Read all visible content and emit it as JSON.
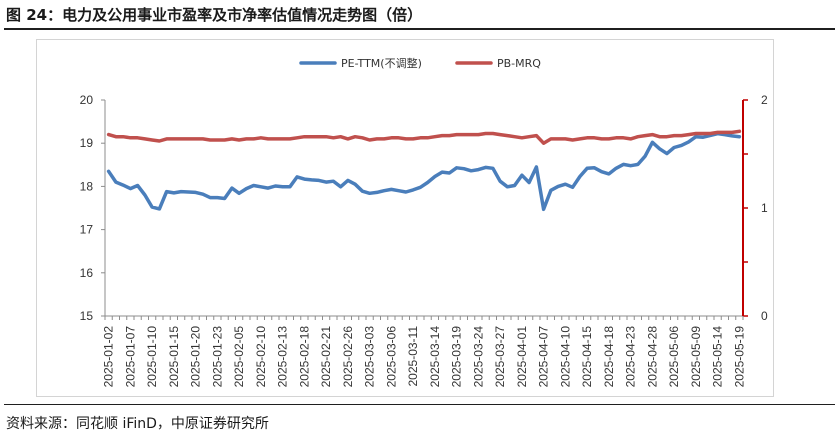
{
  "figure": {
    "title": "图 24：电力及公用事业市盈率及市净率估值情况走势图（倍）",
    "source": "资料来源：同花顺 iFinD，中原证券研究所"
  },
  "chart_data": {
    "type": "line",
    "x": [
      "2025-01-02",
      "2025-01-03",
      "2025-01-06",
      "2025-01-07",
      "2025-01-08",
      "2025-01-09",
      "2025-01-10",
      "2025-01-13",
      "2025-01-14",
      "2025-01-15",
      "2025-01-16",
      "2025-01-17",
      "2025-01-20",
      "2025-01-21",
      "2025-01-22",
      "2025-01-23",
      "2025-01-24",
      "2025-01-27",
      "2025-02-05",
      "2025-02-06",
      "2025-02-07",
      "2025-02-10",
      "2025-02-11",
      "2025-02-12",
      "2025-02-13",
      "2025-02-14",
      "2025-02-17",
      "2025-02-18",
      "2025-02-19",
      "2025-02-20",
      "2025-02-21",
      "2025-02-24",
      "2025-02-25",
      "2025-02-26",
      "2025-02-27",
      "2025-02-28",
      "2025-03-03",
      "2025-03-04",
      "2025-03-05",
      "2025-03-06",
      "2025-03-07",
      "2025-03-10",
      "2025-03-11",
      "2025-03-12",
      "2025-03-13",
      "2025-03-14",
      "2025-03-17",
      "2025-03-18",
      "2025-03-19",
      "2025-03-20",
      "2025-03-21",
      "2025-03-24",
      "2025-03-25",
      "2025-03-26",
      "2025-03-27",
      "2025-03-28",
      "2025-03-31",
      "2025-04-01",
      "2025-04-02",
      "2025-04-03",
      "2025-04-07",
      "2025-04-08",
      "2025-04-09",
      "2025-04-10",
      "2025-04-11",
      "2025-04-14",
      "2025-04-15",
      "2025-04-16",
      "2025-04-17",
      "2025-04-18",
      "2025-04-21",
      "2025-04-22",
      "2025-04-23",
      "2025-04-24",
      "2025-04-25",
      "2025-04-28",
      "2025-04-29",
      "2025-04-30",
      "2025-05-06",
      "2025-05-07",
      "2025-05-08",
      "2025-05-09",
      "2025-05-12",
      "2025-05-13",
      "2025-05-14",
      "2025-05-15",
      "2025-05-16",
      "2025-05-19"
    ],
    "tick_labels": [
      "2025-01-02",
      "2025-01-07",
      "2025-01-10",
      "2025-01-15",
      "2025-01-20",
      "2025-01-23",
      "2025-02-05",
      "2025-02-10",
      "2025-02-13",
      "2025-02-18",
      "2025-02-21",
      "2025-02-26",
      "2025-03-03",
      "2025-03-06",
      "2025-03-11",
      "2025-03-14",
      "2025-03-19",
      "2025-03-24",
      "2025-03-27",
      "2025-04-01",
      "2025-04-07",
      "2025-04-10",
      "2025-04-15",
      "2025-04-18",
      "2025-04-23",
      "2025-04-28",
      "2025-05-06",
      "2025-05-09",
      "2025-05-14",
      "2025-05-19"
    ],
    "series": [
      {
        "name": "PE-TTM(不调整)",
        "axis": "left",
        "color": "#4a7ebb",
        "values": [
          18.35,
          18.1,
          18.03,
          17.95,
          18.02,
          17.8,
          17.52,
          17.48,
          17.88,
          17.85,
          17.88,
          17.87,
          17.86,
          17.82,
          17.74,
          17.74,
          17.72,
          17.96,
          17.84,
          17.95,
          18.02,
          17.99,
          17.96,
          18.01,
          17.99,
          17.99,
          18.22,
          18.17,
          18.15,
          18.14,
          18.1,
          18.12,
          17.99,
          18.14,
          18.05,
          17.89,
          17.84,
          17.86,
          17.9,
          17.93,
          17.9,
          17.87,
          17.92,
          17.98,
          18.09,
          18.23,
          18.33,
          18.31,
          18.43,
          18.41,
          18.36,
          18.39,
          18.44,
          18.42,
          18.12,
          17.99,
          18.02,
          18.26,
          18.09,
          18.45,
          17.47,
          17.91,
          18.0,
          18.05,
          17.98,
          18.23,
          18.42,
          18.43,
          18.34,
          18.29,
          18.42,
          18.51,
          18.48,
          18.51,
          18.7,
          19.02,
          18.87,
          18.76,
          18.9,
          18.95,
          19.03,
          19.15,
          19.14,
          19.18,
          19.22,
          19.2,
          19.17,
          19.15
        ]
      },
      {
        "name": "PB-MRQ",
        "axis": "right",
        "color": "#c0504d",
        "values": [
          1.68,
          1.66,
          1.66,
          1.65,
          1.65,
          1.64,
          1.63,
          1.62,
          1.64,
          1.64,
          1.64,
          1.64,
          1.64,
          1.64,
          1.63,
          1.63,
          1.63,
          1.64,
          1.63,
          1.64,
          1.64,
          1.65,
          1.64,
          1.64,
          1.64,
          1.64,
          1.65,
          1.66,
          1.66,
          1.66,
          1.66,
          1.65,
          1.66,
          1.64,
          1.66,
          1.65,
          1.63,
          1.64,
          1.64,
          1.65,
          1.65,
          1.64,
          1.64,
          1.65,
          1.65,
          1.66,
          1.67,
          1.67,
          1.68,
          1.68,
          1.68,
          1.68,
          1.69,
          1.69,
          1.68,
          1.67,
          1.66,
          1.65,
          1.66,
          1.67,
          1.6,
          1.64,
          1.64,
          1.64,
          1.63,
          1.64,
          1.65,
          1.65,
          1.64,
          1.64,
          1.65,
          1.65,
          1.64,
          1.66,
          1.67,
          1.68,
          1.66,
          1.66,
          1.67,
          1.67,
          1.68,
          1.69,
          1.69,
          1.69,
          1.7,
          1.7,
          1.7,
          1.71
        ]
      }
    ],
    "y_left": {
      "ylim": [
        15,
        20
      ],
      "ticks": [
        "15",
        "16",
        "17",
        "18",
        "19",
        "20"
      ]
    },
    "y_right": {
      "ylim": [
        0,
        2
      ],
      "ticks": [
        "0",
        "1",
        "2"
      ]
    },
    "grid": false,
    "legend_position": "top-center"
  }
}
